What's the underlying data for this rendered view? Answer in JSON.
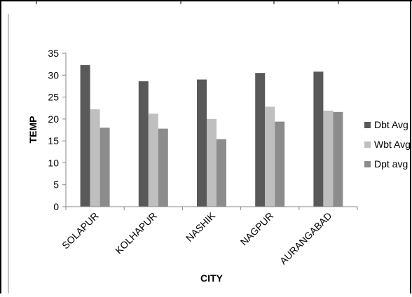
{
  "chart_data": {
    "type": "bar",
    "categories": [
      "SOLAPUR",
      "KOLHAPUR",
      "NASHIK",
      "NAGPUR",
      "AURANGABAD"
    ],
    "series": [
      {
        "name": "Dbt Avg",
        "color": "#595959",
        "values": [
          32.3,
          28.6,
          29.0,
          30.5,
          30.8
        ]
      },
      {
        "name": "Wbt Avg",
        "color": "#bfbfbf",
        "values": [
          22.2,
          21.2,
          20.0,
          22.8,
          21.9
        ]
      },
      {
        "name": "Dpt avg",
        "color": "#8c8c8c",
        "values": [
          18.0,
          17.8,
          15.4,
          19.4,
          21.6
        ]
      }
    ],
    "xlabel": "CITY",
    "ylabel": "TEMP",
    "ylim": [
      0,
      35
    ],
    "yticks": [
      0,
      5,
      10,
      15,
      20,
      25,
      30,
      35
    ],
    "grid": false,
    "legend_position": "right"
  }
}
